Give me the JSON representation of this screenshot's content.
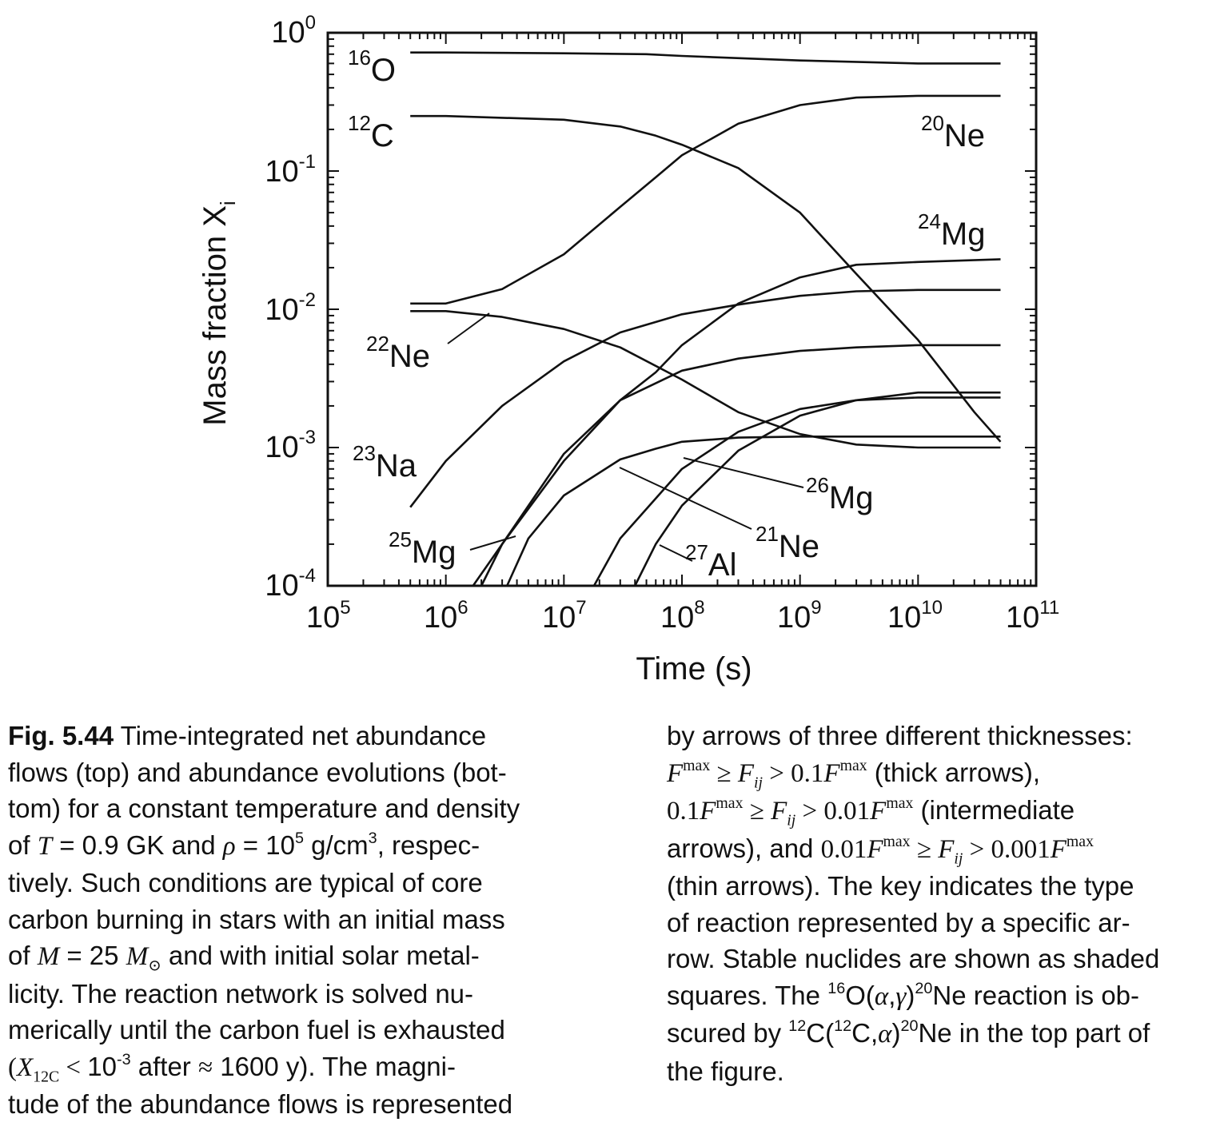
{
  "chart_data": {
    "type": "line",
    "xlabel": "Time  (s)",
    "ylabel": "Mass fraction X",
    "ylabel_sub": "i",
    "xscale": "log",
    "yscale": "log",
    "xlim": [
      100000,
      100000000000
    ],
    "ylim": [
      0.0001,
      1
    ],
    "x_ticks": [
      {
        "base": "10",
        "exp": "5",
        "value": 100000
      },
      {
        "base": "10",
        "exp": "6",
        "value": 1000000
      },
      {
        "base": "10",
        "exp": "7",
        "value": 10000000
      },
      {
        "base": "10",
        "exp": "8",
        "value": 100000000
      },
      {
        "base": "10",
        "exp": "9",
        "value": 1000000000
      },
      {
        "base": "10",
        "exp": "10",
        "value": 10000000000
      },
      {
        "base": "10",
        "exp": "11",
        "value": 100000000000
      }
    ],
    "y_ticks": [
      {
        "base": "10",
        "exp": "0",
        "value": 1
      },
      {
        "base": "10",
        "exp": "-1",
        "value": 0.1
      },
      {
        "base": "10",
        "exp": "-2",
        "value": 0.01
      },
      {
        "base": "10",
        "exp": "-3",
        "value": 0.001
      },
      {
        "base": "10",
        "exp": "-4",
        "value": 0.0001
      }
    ],
    "grid": false,
    "series": [
      {
        "name": "16O",
        "mass": "16",
        "element": "O",
        "x": [
          500000,
          1000000.0,
          10000000.0,
          50000000.0,
          100000000.0,
          1000000000.0,
          10000000000.0,
          50000000000.0
        ],
        "y": [
          0.72,
          0.72,
          0.71,
          0.7,
          0.68,
          0.63,
          0.6,
          0.6
        ]
      },
      {
        "name": "12C",
        "mass": "12",
        "element": "C",
        "x": [
          500000,
          1000000.0,
          10000000.0,
          30000000.0,
          60000000.0,
          100000000.0,
          300000000.0,
          1000000000.0,
          3000000000.0,
          10000000000.0,
          30000000000.0,
          50000000000.0
        ],
        "y": [
          0.25,
          0.25,
          0.235,
          0.21,
          0.18,
          0.155,
          0.105,
          0.05,
          0.018,
          0.006,
          0.0018,
          0.0011
        ]
      },
      {
        "name": "20Ne",
        "mass": "20",
        "element": "Ne",
        "x": [
          500000,
          1000000.0,
          3000000.0,
          10000000.0,
          30000000.0,
          60000000.0,
          100000000.0,
          300000000.0,
          1000000000.0,
          3000000000.0,
          10000000000.0,
          50000000000.0
        ],
        "y": [
          0.011,
          0.011,
          0.014,
          0.025,
          0.055,
          0.09,
          0.13,
          0.22,
          0.3,
          0.34,
          0.35,
          0.35
        ]
      },
      {
        "name": "22Ne",
        "mass": "22",
        "element": "Ne",
        "x": [
          500000,
          1000000.0,
          3000000.0,
          10000000.0,
          30000000.0,
          100000000.0,
          300000000.0,
          1000000000.0,
          3000000000.0,
          10000000000.0,
          50000000000.0
        ],
        "y": [
          0.0097,
          0.0097,
          0.0088,
          0.0072,
          0.0053,
          0.0031,
          0.0018,
          0.00125,
          0.00105,
          0.001,
          0.001
        ]
      },
      {
        "name": "23Na",
        "mass": "23",
        "element": "Na",
        "x": [
          500000,
          1000000.0,
          3000000.0,
          10000000.0,
          30000000.0,
          100000000.0,
          300000000.0,
          1000000000.0,
          3000000000.0,
          10000000000.0,
          50000000000.0
        ],
        "y": [
          0.00037,
          0.0008,
          0.002,
          0.0042,
          0.0068,
          0.0092,
          0.0108,
          0.0125,
          0.0135,
          0.0138,
          0.0138
        ]
      },
      {
        "name": "24Mg",
        "mass": "24",
        "element": "Mg",
        "x": [
          1700000.0,
          3000000.0,
          10000000.0,
          30000000.0,
          60000000.0,
          100000000.0,
          300000000.0,
          1000000000.0,
          3000000000.0,
          10000000000.0,
          50000000000.0
        ],
        "y": [
          0.0001,
          0.0002,
          0.0008,
          0.0022,
          0.0035,
          0.0055,
          0.011,
          0.017,
          0.021,
          0.022,
          0.023
        ]
      },
      {
        "name": "25Mg",
        "mass": "25",
        "element": "Mg",
        "x": [
          2000000.0,
          3000000.0,
          10000000.0,
          30000000.0,
          100000000.0,
          300000000.0,
          1000000000.0,
          3000000000.0,
          10000000000.0,
          50000000000.0
        ],
        "y": [
          0.0001,
          0.0002,
          0.0009,
          0.0022,
          0.0036,
          0.0044,
          0.005,
          0.0053,
          0.0055,
          0.0055
        ]
      },
      {
        "name": "21Ne",
        "mass": "21",
        "element": "Ne",
        "x": [
          3300000.0,
          5000000.0,
          10000000.0,
          30000000.0,
          60000000.0,
          100000000.0,
          300000000.0,
          1000000000.0,
          3000000000.0,
          10000000000.0,
          50000000000.0
        ],
        "y": [
          0.0001,
          0.00022,
          0.00045,
          0.00082,
          0.00098,
          0.0011,
          0.00118,
          0.0012,
          0.0012,
          0.0012,
          0.0012
        ]
      },
      {
        "name": "26Mg",
        "mass": "26",
        "element": "Mg",
        "x": [
          18000000.0,
          30000000.0,
          100000000.0,
          300000000.0,
          1000000000.0,
          3000000000.0,
          10000000000.0,
          50000000000.0
        ],
        "y": [
          0.0001,
          0.00022,
          0.0007,
          0.0013,
          0.0019,
          0.0022,
          0.0023,
          0.0023
        ]
      },
      {
        "name": "27Al",
        "mass": "27",
        "element": "Al",
        "x": [
          40000000.0,
          60000000.0,
          100000000.0,
          300000000.0,
          1000000000.0,
          3000000000.0,
          10000000000.0,
          50000000000.0
        ],
        "y": [
          0.0001,
          0.0002,
          0.00038,
          0.00095,
          0.0017,
          0.0022,
          0.0025,
          0.0025
        ]
      }
    ],
    "annotations": [
      {
        "mass": "16",
        "element": "O"
      },
      {
        "mass": "12",
        "element": "C"
      },
      {
        "mass": "20",
        "element": "Ne"
      },
      {
        "mass": "24",
        "element": "Mg"
      },
      {
        "mass": "22",
        "element": "Ne"
      },
      {
        "mass": "23",
        "element": "Na"
      },
      {
        "mass": "26",
        "element": "Mg"
      },
      {
        "mass": "25",
        "element": "Mg"
      },
      {
        "mass": "21",
        "element": "Ne"
      },
      {
        "mass": "27",
        "element": "Al"
      }
    ]
  },
  "caption": {
    "fig_label": "Fig. 5.44",
    "left_lines": [
      " Time-integrated net abundance",
      "flows (top) and abundance evolutions (bot-",
      "tom) for a constant temperature and density"
    ],
    "l4_a": "of ",
    "l4_T": "T",
    "l4_b": " = 0.9 GK and ",
    "l4_rho": "ρ",
    "l4_c": " = 10",
    "l4_c_sup": "5",
    "l4_d": " g/cm",
    "l4_d_sup": "3",
    "l4_e": ", respec-",
    "l5": "tively. Such conditions are typical of core",
    "l6": "carbon burning in stars with an initial mass",
    "l7_a": "of ",
    "l7_M": "M",
    "l7_b": " = 25 ",
    "l7_Msun": "M",
    "l7_sun": "⊙",
    "l7_c": " and with initial solar metal-",
    "l8": "licity. The reaction network is solved nu-",
    "l9": "merically until the carbon fuel is exhausted",
    "l10_a": "(",
    "l10_X": "X",
    "l10_sub_a": "12",
    "l10_sub_b": "C",
    "l10_lt": " < ",
    "l10_b": "10",
    "l10_b_sup": "-3",
    "l10_c": " after ",
    "l10_approx": "≈",
    "l10_d": " 1600 y). The magni-",
    "l11": "tude of the abundance flows is represented",
    "r1": "by arrows of three different thicknesses:",
    "f_F": "F",
    "f_max": "max",
    "f_ge": " ≥ ",
    "f_Fij": "F",
    "f_ij": "ij",
    "f_gt": " > ",
    "r2_coef": "0.1",
    "r2_tail": " (thick arrows),",
    "r3_coef": "0.1",
    "r3_coef2": "0.01",
    "r3_tail": " (intermediate",
    "r4_a": "arrows), and ",
    "r4_coef": "0.01",
    "r4_coef2": "0.001",
    "r5": "(thin arrows). The key indicates the type",
    "r6": "of reaction represented by a specific ar-",
    "r7": "row. Stable nuclides are shown as shaded",
    "r8_a": "squares. The ",
    "r8_sup1": "16",
    "r8_b": "O(",
    "r8_alpha": "α",
    "r8_comma": ",",
    "r8_gamma": "γ",
    "r8_c": ")",
    "r8_sup2": "20",
    "r8_d": "Ne reaction is ob-",
    "r9_a": "scured by ",
    "r9_sup1": "12",
    "r9_b": "C(",
    "r9_sup2": "12",
    "r9_c": "C,",
    "r9_alpha": "α",
    "r9_d": ")",
    "r9_sup3": "20",
    "r9_e": "Ne in the top part of",
    "r10": "the figure."
  }
}
